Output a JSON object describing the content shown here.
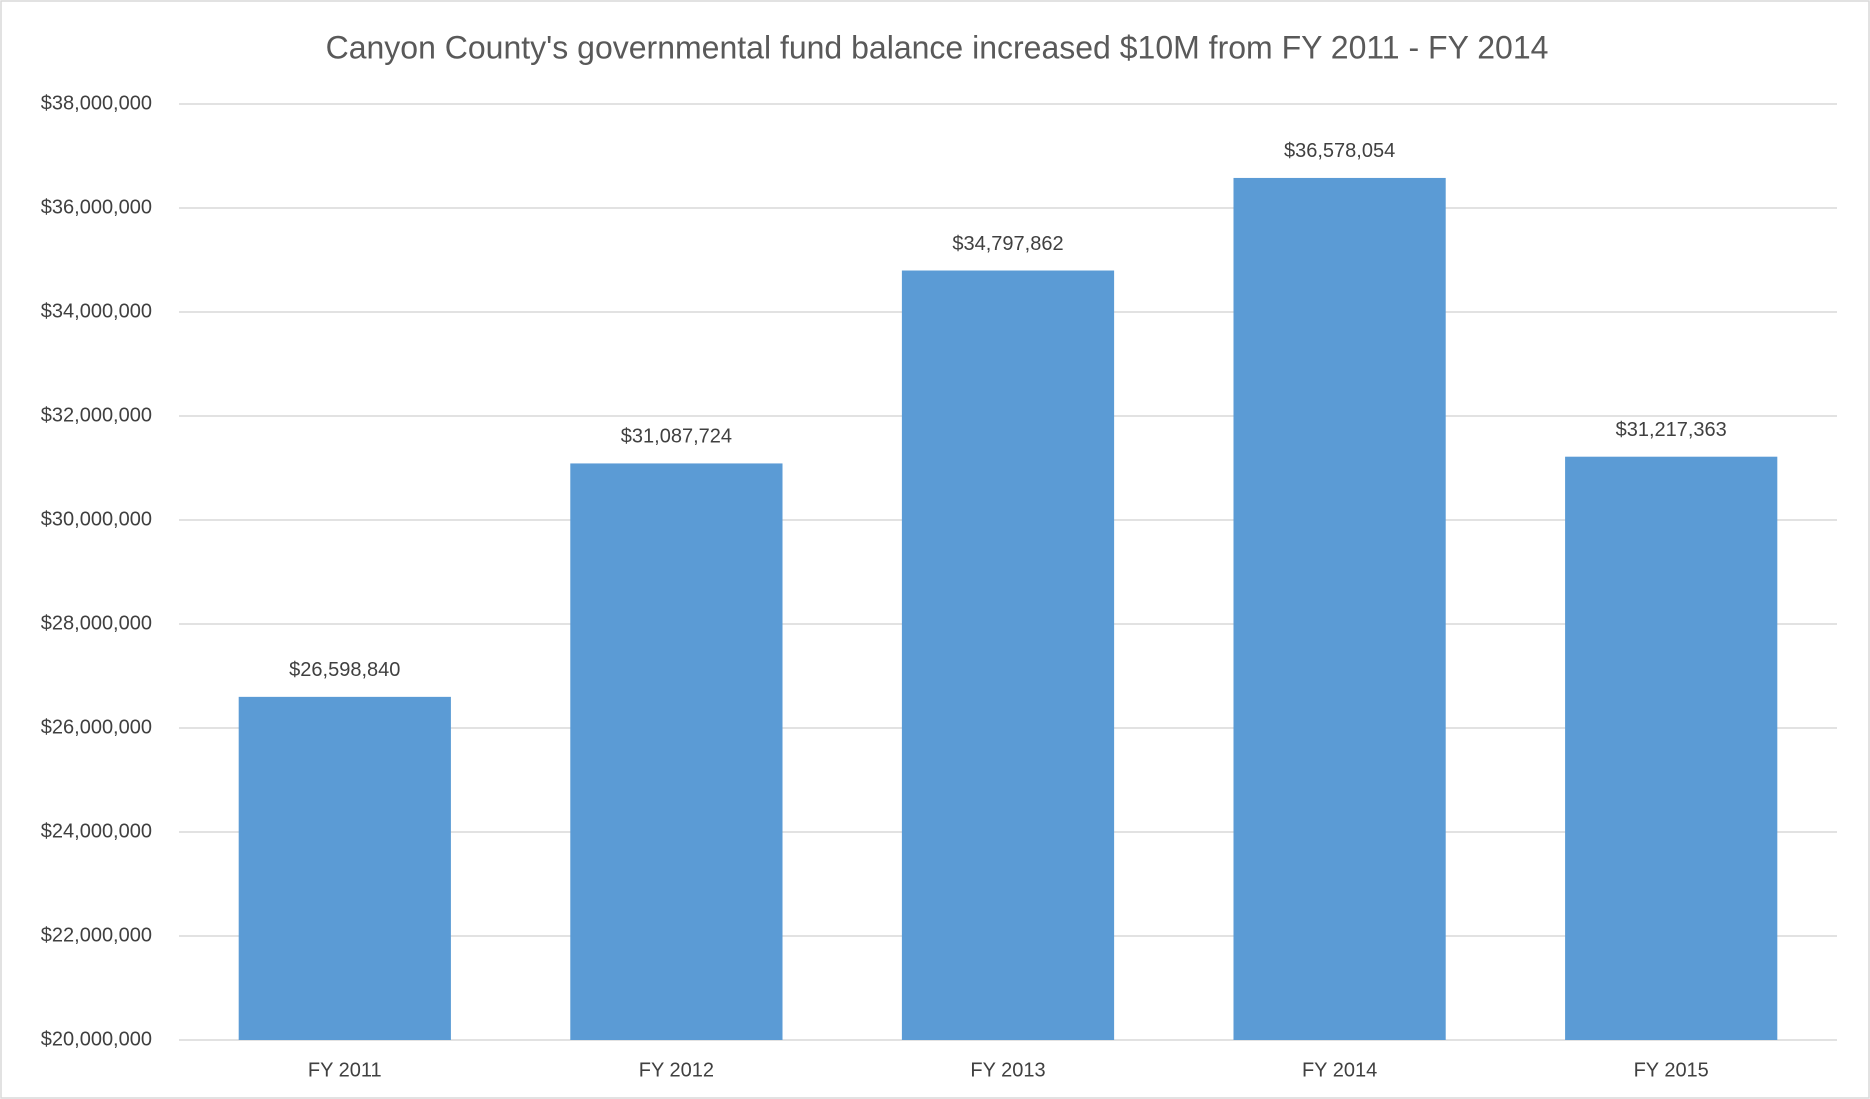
{
  "chart_data": {
    "type": "bar",
    "title": "Canyon County's governmental fund balance increased $10M from FY 2011 - FY 2014",
    "categories": [
      "FY 2011",
      "FY 2012",
      "FY 2013",
      "FY 2014",
      "FY 2015"
    ],
    "values": [
      26598840,
      31087724,
      34797862,
      36578054,
      31217363
    ],
    "value_labels": [
      "$26,598,840",
      "$31,087,724",
      "$34,797,862",
      "$36,578,054",
      "$31,217,363"
    ],
    "color": "#5b9bd5",
    "ylim": [
      20000000,
      38000000
    ],
    "yticks": [
      {
        "value": 20000000,
        "label": "$20,000,000"
      },
      {
        "value": 22000000,
        "label": "$22,000,000"
      },
      {
        "value": 24000000,
        "label": "$24,000,000"
      },
      {
        "value": 26000000,
        "label": "$26,000,000"
      },
      {
        "value": 28000000,
        "label": "$28,000,000"
      },
      {
        "value": 30000000,
        "label": "$30,000,000"
      },
      {
        "value": 32000000,
        "label": "$32,000,000"
      },
      {
        "value": 34000000,
        "label": "$34,000,000"
      },
      {
        "value": 36000000,
        "label": "$36,000,000"
      },
      {
        "value": 38000000,
        "label": "$38,000,000"
      }
    ],
    "grid": true
  }
}
